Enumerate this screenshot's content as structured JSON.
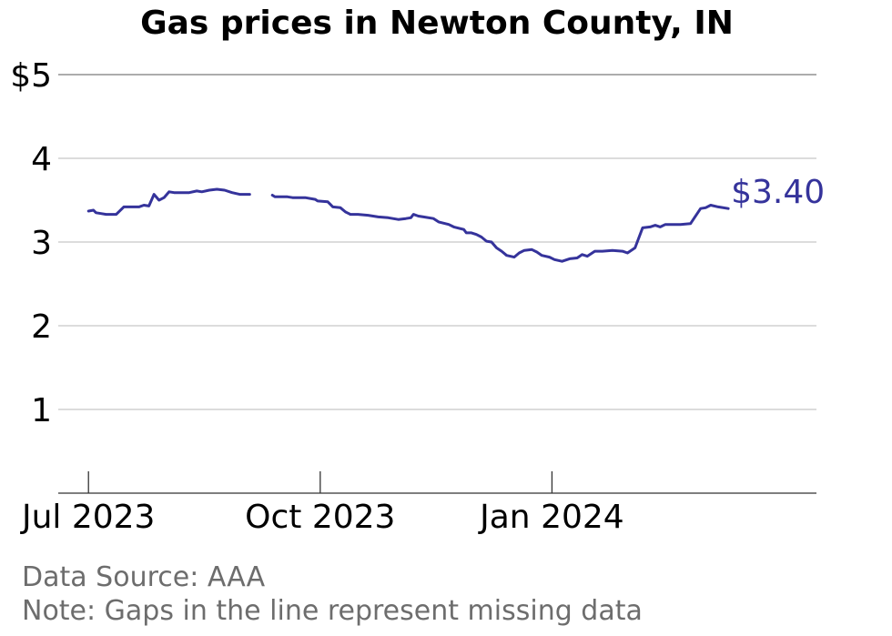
{
  "chart_data": {
    "type": "line",
    "title": "Gas prices in Newton County, IN",
    "xlabel": "",
    "ylabel": "",
    "x_ticks": [
      "Jul 2023",
      "Oct 2023",
      "Jan 2024"
    ],
    "y_ticks": [
      "$5",
      "4",
      "3",
      "2",
      "1"
    ],
    "ylim": [
      0,
      5
    ],
    "xlim": [
      "2023-06-19",
      "2024-04-15"
    ],
    "grid": true,
    "series": [
      {
        "name": "",
        "color": "#35339b",
        "segments": [
          [
            [
              "2023-07-01",
              3.37
            ],
            [
              "2023-07-03",
              3.38
            ],
            [
              "2023-07-04",
              3.35
            ],
            [
              "2023-07-06",
              3.34
            ],
            [
              "2023-07-08",
              3.33
            ],
            [
              "2023-07-10",
              3.33
            ],
            [
              "2023-07-12",
              3.33
            ],
            [
              "2023-07-13",
              3.36
            ],
            [
              "2023-07-15",
              3.42
            ],
            [
              "2023-07-17",
              3.42
            ],
            [
              "2023-07-19",
              3.42
            ],
            [
              "2023-07-21",
              3.42
            ],
            [
              "2023-07-23",
              3.44
            ],
            [
              "2023-07-25",
              3.43
            ],
            [
              "2023-07-27",
              3.57
            ],
            [
              "2023-07-29",
              3.5
            ],
            [
              "2023-07-31",
              3.53
            ],
            [
              "2023-08-02",
              3.6
            ],
            [
              "2023-08-04",
              3.59
            ],
            [
              "2023-08-07",
              3.59
            ],
            [
              "2023-08-10",
              3.59
            ],
            [
              "2023-08-13",
              3.61
            ],
            [
              "2023-08-15",
              3.6
            ],
            [
              "2023-08-18",
              3.62
            ],
            [
              "2023-08-21",
              3.63
            ],
            [
              "2023-08-24",
              3.62
            ],
            [
              "2023-08-27",
              3.59
            ],
            [
              "2023-08-30",
              3.57
            ],
            [
              "2023-09-03",
              3.57
            ]
          ],
          [
            [
              "2023-09-12",
              3.56
            ],
            [
              "2023-09-13",
              3.54
            ],
            [
              "2023-09-18",
              3.54
            ],
            [
              "2023-09-20",
              3.53
            ],
            [
              "2023-09-25",
              3.53
            ],
            [
              "2023-09-29",
              3.51
            ],
            [
              "2023-09-30",
              3.49
            ],
            [
              "2023-10-04",
              3.48
            ],
            [
              "2023-10-05",
              3.45
            ],
            [
              "2023-10-06",
              3.42
            ],
            [
              "2023-10-09",
              3.41
            ],
            [
              "2023-10-11",
              3.36
            ],
            [
              "2023-10-13",
              3.33
            ],
            [
              "2023-10-16",
              3.33
            ],
            [
              "2023-10-20",
              3.32
            ],
            [
              "2023-10-24",
              3.3
            ],
            [
              "2023-10-28",
              3.29
            ],
            [
              "2023-11-01",
              3.27
            ],
            [
              "2023-11-04",
              3.28
            ],
            [
              "2023-11-06",
              3.29
            ],
            [
              "2023-11-07",
              3.33
            ],
            [
              "2023-11-09",
              3.31
            ],
            [
              "2023-11-11",
              3.3
            ],
            [
              "2023-11-15",
              3.28
            ],
            [
              "2023-11-17",
              3.24
            ],
            [
              "2023-11-21",
              3.21
            ],
            [
              "2023-11-23",
              3.18
            ],
            [
              "2023-11-27",
              3.15
            ],
            [
              "2023-11-28",
              3.11
            ],
            [
              "2023-11-30",
              3.11
            ],
            [
              "2023-12-02",
              3.09
            ],
            [
              "2023-12-04",
              3.06
            ],
            [
              "2023-12-06",
              3.01
            ],
            [
              "2023-12-08",
              3.0
            ],
            [
              "2023-12-10",
              2.93
            ],
            [
              "2023-12-12",
              2.89
            ],
            [
              "2023-12-14",
              2.84
            ],
            [
              "2023-12-17",
              2.82
            ],
            [
              "2023-12-19",
              2.87
            ],
            [
              "2023-12-21",
              2.9
            ],
            [
              "2023-12-24",
              2.91
            ],
            [
              "2023-12-26",
              2.88
            ],
            [
              "2023-12-28",
              2.84
            ],
            [
              "2023-12-31",
              2.82
            ],
            [
              "2024-01-02",
              2.79
            ],
            [
              "2024-01-05",
              2.77
            ],
            [
              "2024-01-08",
              2.8
            ],
            [
              "2024-01-11",
              2.81
            ],
            [
              "2024-01-13",
              2.85
            ],
            [
              "2024-01-15",
              2.83
            ],
            [
              "2024-01-18",
              2.89
            ],
            [
              "2024-01-21",
              2.89
            ],
            [
              "2024-01-25",
              2.9
            ],
            [
              "2024-01-29",
              2.89
            ],
            [
              "2024-01-31",
              2.87
            ],
            [
              "2024-02-03",
              2.93
            ],
            [
              "2024-02-06",
              3.17
            ],
            [
              "2024-02-09",
              3.18
            ],
            [
              "2024-02-11",
              3.2
            ],
            [
              "2024-02-13",
              3.18
            ],
            [
              "2024-02-15",
              3.21
            ],
            [
              "2024-02-18",
              3.21
            ],
            [
              "2024-02-21",
              3.21
            ],
            [
              "2024-02-25",
              3.22
            ],
            [
              "2024-02-29",
              3.4
            ],
            [
              "2024-03-02",
              3.41
            ],
            [
              "2024-03-04",
              3.44
            ],
            [
              "2024-03-07",
              3.42
            ],
            [
              "2024-03-11",
              3.4
            ]
          ]
        ]
      }
    ],
    "end_label": "$3.40"
  },
  "footer": {
    "source": "Data Source: AAA",
    "note": "Note: Gaps in the line represent missing data"
  }
}
